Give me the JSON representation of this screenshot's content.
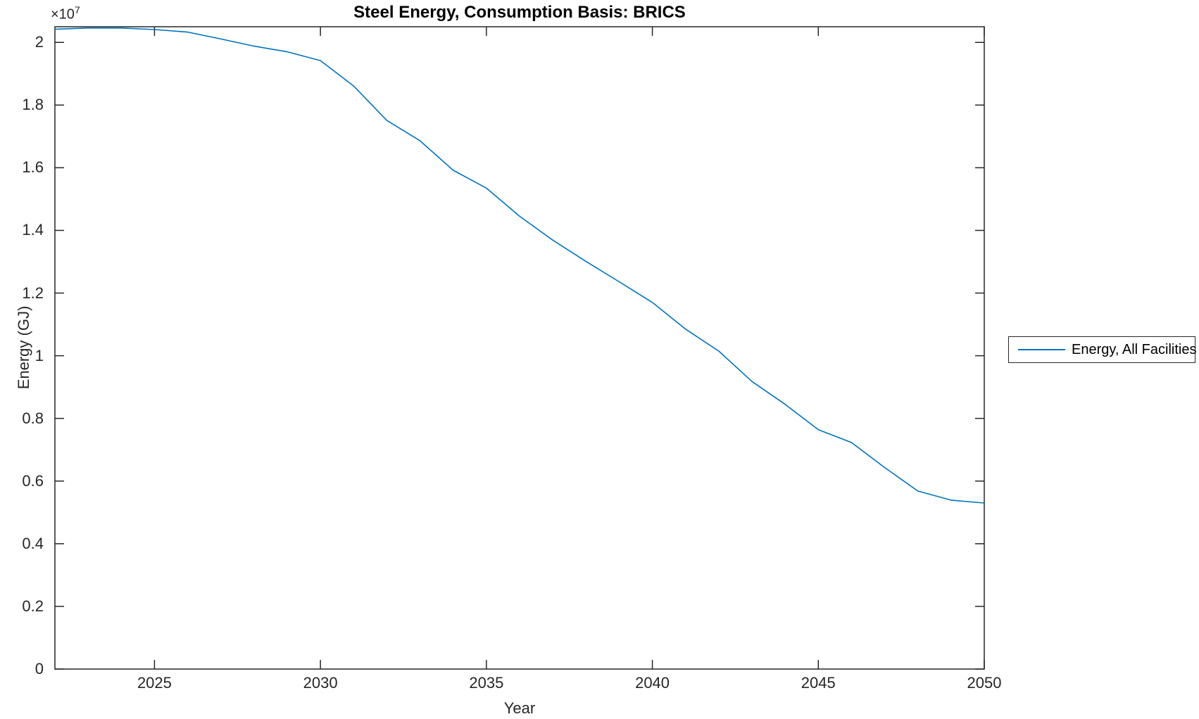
{
  "title": "Steel Energy, Consumption Basis: BRICS",
  "axis": {
    "xlabel": "Year",
    "ylabel": "Energy (GJ)",
    "offset_base": "×10",
    "offset_exp": "7"
  },
  "legend": {
    "items": [
      {
        "label": "Energy, All Facilities",
        "color": "#0072BD"
      }
    ],
    "position": "eastoutside"
  },
  "chart_data": {
    "type": "line",
    "title": "Steel Energy, Consumption Basis: BRICS",
    "xlabel": "Year",
    "ylabel": "Energy (GJ)",
    "y_offset_text": "×10^7",
    "grid": false,
    "xlim": [
      2022,
      2050
    ],
    "ylim": [
      0,
      20500000
    ],
    "x_ticks": [
      2025,
      2030,
      2035,
      2040,
      2045,
      2050
    ],
    "y_ticks": [
      {
        "label": "0",
        "value": 0
      },
      {
        "label": "0.2",
        "value": 2000000
      },
      {
        "label": "0.4",
        "value": 4000000
      },
      {
        "label": "0.6",
        "value": 6000000
      },
      {
        "label": "0.8",
        "value": 8000000
      },
      {
        "label": "1",
        "value": 10000000
      },
      {
        "label": "1.2",
        "value": 12000000
      },
      {
        "label": "1.4",
        "value": 14000000
      },
      {
        "label": "1.6",
        "value": 16000000
      },
      {
        "label": "1.8",
        "value": 18000000
      },
      {
        "label": "2",
        "value": 20000000
      }
    ],
    "series": [
      {
        "name": "Energy, All Facilities",
        "color": "#0072BD",
        "x": [
          2022,
          2023,
          2024,
          2025,
          2026,
          2027,
          2028,
          2029,
          2030,
          2031,
          2032,
          2033,
          2034,
          2035,
          2036,
          2037,
          2038,
          2039,
          2040,
          2041,
          2042,
          2043,
          2044,
          2045,
          2046,
          2047,
          2048,
          2049,
          2050
        ],
        "y": [
          20420000,
          20460000,
          20460000,
          20410000,
          20330000,
          20110000,
          19880000,
          19700000,
          19420000,
          18610000,
          17510000,
          16860000,
          15920000,
          15350000,
          14450000,
          13690000,
          13010000,
          12360000,
          11700000,
          10850000,
          10150000,
          9180000,
          8450000,
          7640000,
          7230000,
          6430000,
          5680000,
          5390000,
          5300000
        ]
      }
    ]
  }
}
